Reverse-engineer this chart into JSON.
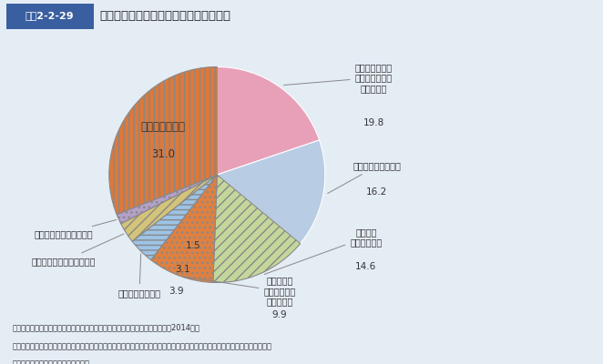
{
  "title_box_label": "図表2-2-29",
  "title_text": "健康のために特に何も行っていない理由",
  "slices": [
    {
      "label": "何をどのように\nやったらよいか\nわからない",
      "value": 19.8,
      "color": "#E8A0B8",
      "hatch": ""
    },
    {
      "label": "忙しくて時間がない",
      "value": 16.2,
      "color": "#B8CCE4",
      "hatch": ""
    },
    {
      "label": "経済的な\nゆとりがない",
      "value": 14.6,
      "color": "#C4D79B",
      "hatch": "///"
    },
    {
      "label": "健康なので\n特に何もする\n必要はない",
      "value": 9.9,
      "color": "#E08040",
      "hatch": "..."
    },
    {
      "label": "施設や機会がない",
      "value": 3.9,
      "color": "#9DC3E6",
      "hatch": "---"
    },
    {
      "label": "健康上の理由からやれない",
      "value": 3.1,
      "color": "#D4C47A",
      "hatch": "..."
    },
    {
      "label": "一緒にやる仲間がいない",
      "value": 1.5,
      "color": "#B4A0C8",
      "hatch": "..."
    },
    {
      "label": "特に理由はない",
      "value": 31.0,
      "color": "#E07838",
      "hatch": "|||"
    }
  ],
  "note1": "資料：厚生労働省政策統括官付政策評価官室委託「健康意識に関する調査」（2014年）",
  "note2": "（注）　健康のために「気をつけているが特に何かをやっているわけではない」又は「特に意識しておらず具体的には何も行っ",
  "note3": "　　　ていない」人を対象にした質問",
  "background_color": "#E4ECF4",
  "header_bg": "#3A5FA0",
  "startangle": 90
}
